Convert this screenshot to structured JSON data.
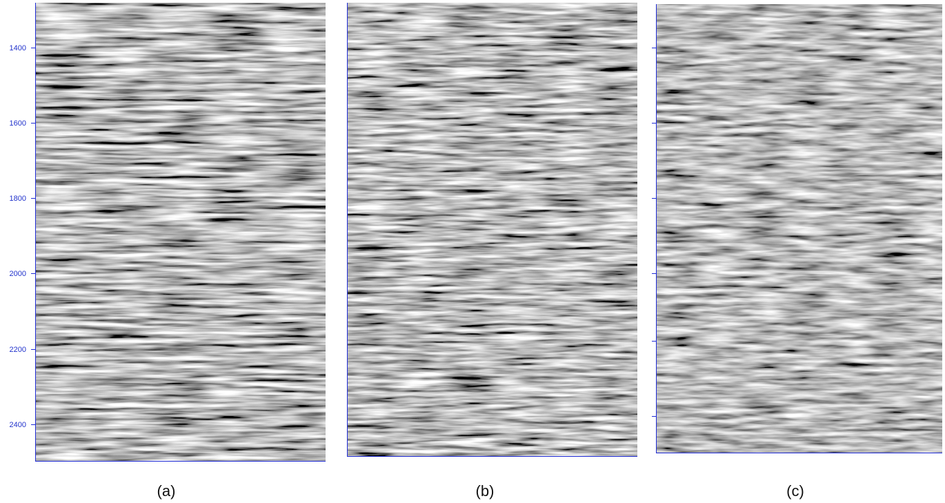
{
  "panels": [
    {
      "caption": "(a)"
    },
    {
      "caption": "(b)"
    },
    {
      "caption": "(c)"
    }
  ],
  "axis": {
    "ticks": [
      "1400",
      "1600",
      "1800",
      "2000",
      "2200",
      "2400"
    ],
    "axis_color": "#1f2bd6"
  }
}
